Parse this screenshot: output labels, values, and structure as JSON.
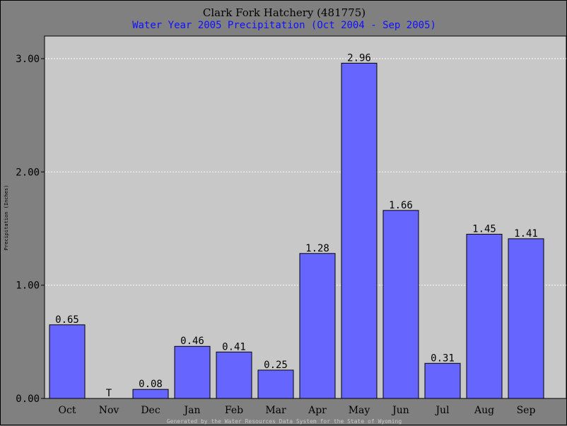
{
  "chart_data": {
    "type": "bar",
    "title": "Clark Fork Hatchery (481775)",
    "subtitle": "Water Year 2005 Precipitation (Oct 2004 - Sep 2005)",
    "xlabel": "",
    "ylabel": "Precipitation (Inches)",
    "ylim": [
      0,
      3.0
    ],
    "yticks": [
      "0.00",
      "1.00",
      "2.00",
      "3.00"
    ],
    "categories": [
      "Oct",
      "Nov",
      "Dec",
      "Jan",
      "Feb",
      "Mar",
      "Apr",
      "May",
      "Jun",
      "Jul",
      "Aug",
      "Sep"
    ],
    "values": [
      0.65,
      0,
      0.08,
      0.46,
      0.41,
      0.25,
      1.28,
      2.96,
      1.66,
      0.31,
      1.45,
      1.41
    ],
    "data_labels": [
      "0.65",
      "T",
      "0.08",
      "0.46",
      "0.41",
      "0.25",
      "1.28",
      "2.96",
      "1.66",
      "0.31",
      "1.45",
      "1.41"
    ],
    "grid": true,
    "bar_color": "#6666ff",
    "plot_background": "#c8c8c8",
    "page_background": "#808080",
    "footer": "Generated by the Water Resources Data System for the State of Wyoming"
  }
}
